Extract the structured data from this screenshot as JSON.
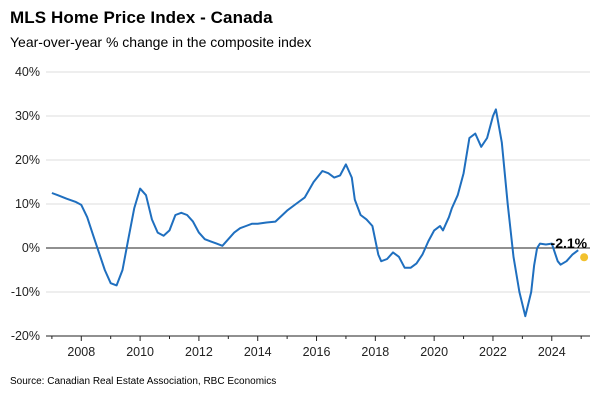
{
  "title": "MLS Home Price Index - Canada",
  "subtitle": "Year-over-year % change in the composite index",
  "source": "Source: Canadian Real Estate Association, RBC Economics",
  "colors": {
    "line": "#1f6fbf",
    "marker": "#f2c12e",
    "grid": "#dddddd",
    "zero": "#222222"
  },
  "chart_data": {
    "type": "line",
    "title": "MLS Home Price Index - Canada",
    "ylabel": "",
    "xlabel": "",
    "ylim": [
      -20,
      40
    ],
    "xlim": [
      2006.8,
      2025.3
    ],
    "y_ticks": [
      -20,
      -10,
      0,
      10,
      20,
      30,
      40
    ],
    "y_tick_labels": [
      "-20%",
      "-10%",
      "0%",
      "10%",
      "20%",
      "30%",
      "40%"
    ],
    "x_ticks": [
      2008,
      2010,
      2012,
      2014,
      2016,
      2018,
      2020,
      2022,
      2024
    ],
    "x_tick_labels": [
      "2008",
      "2010",
      "2012",
      "2014",
      "2016",
      "2018",
      "2020",
      "2022",
      "2024"
    ],
    "grid": true,
    "series": [
      {
        "x": [
          2007.0,
          2007.2,
          2007.5,
          2007.8,
          2008.0,
          2008.2,
          2008.4,
          2008.6,
          2008.8,
          2009.0,
          2009.2,
          2009.4,
          2009.6,
          2009.8,
          2010.0,
          2010.2,
          2010.4,
          2010.6,
          2010.8,
          2011.0,
          2011.2,
          2011.4,
          2011.6,
          2011.8,
          2012.0,
          2012.2,
          2012.4,
          2012.6,
          2012.8,
          2013.0,
          2013.2,
          2013.4,
          2013.6,
          2013.8,
          2014.0,
          2014.3,
          2014.6,
          2015.0,
          2015.3,
          2015.6,
          2015.9,
          2016.2,
          2016.4,
          2016.6,
          2016.8,
          2017.0,
          2017.2,
          2017.3,
          2017.5,
          2017.7,
          2017.9,
          2018.1,
          2018.2,
          2018.4,
          2018.6,
          2018.8,
          2019.0,
          2019.2,
          2019.4,
          2019.6,
          2019.8,
          2020.0,
          2020.2,
          2020.3,
          2020.4,
          2020.5,
          2020.6,
          2020.8,
          2021.0,
          2021.2,
          2021.4,
          2021.6,
          2021.8,
          2022.0,
          2022.1,
          2022.3,
          2022.5,
          2022.7,
          2022.9,
          2023.1,
          2023.3,
          2023.4,
          2023.5,
          2023.6,
          2023.8,
          2024.0,
          2024.2,
          2024.3,
          2024.5,
          2024.7,
          2024.9
        ],
        "y": [
          12.5,
          12.0,
          11.2,
          10.5,
          9.8,
          7.0,
          3.0,
          -1.0,
          -5.0,
          -8.0,
          -8.5,
          -5.0,
          2.0,
          9.0,
          13.5,
          12.0,
          6.5,
          3.5,
          2.8,
          4.0,
          7.5,
          8.0,
          7.5,
          6.0,
          3.5,
          2.0,
          1.5,
          1.0,
          0.5,
          2.0,
          3.5,
          4.5,
          5.0,
          5.5,
          5.5,
          5.8,
          6.0,
          8.5,
          10.0,
          11.5,
          15.0,
          17.5,
          17.0,
          16.0,
          16.5,
          19.0,
          16.0,
          11.0,
          7.5,
          6.5,
          5.0,
          -1.5,
          -3.0,
          -2.5,
          -1.0,
          -2.0,
          -4.5,
          -4.5,
          -3.5,
          -1.5,
          1.5,
          4.0,
          5.0,
          4.0,
          5.5,
          7.0,
          9.0,
          12.0,
          17.0,
          25.0,
          26.0,
          23.0,
          25.0,
          30.0,
          31.5,
          24.0,
          10.0,
          -2.0,
          -10.0,
          -15.5,
          -10.0,
          -4.0,
          0.0,
          1.0,
          0.8,
          1.0,
          -3.0,
          -3.8,
          -3.0,
          -1.5,
          -0.5
        ]
      }
    ],
    "end_point": {
      "x": 2025.1,
      "y": -2.1
    },
    "end_label": "-2.1%"
  }
}
